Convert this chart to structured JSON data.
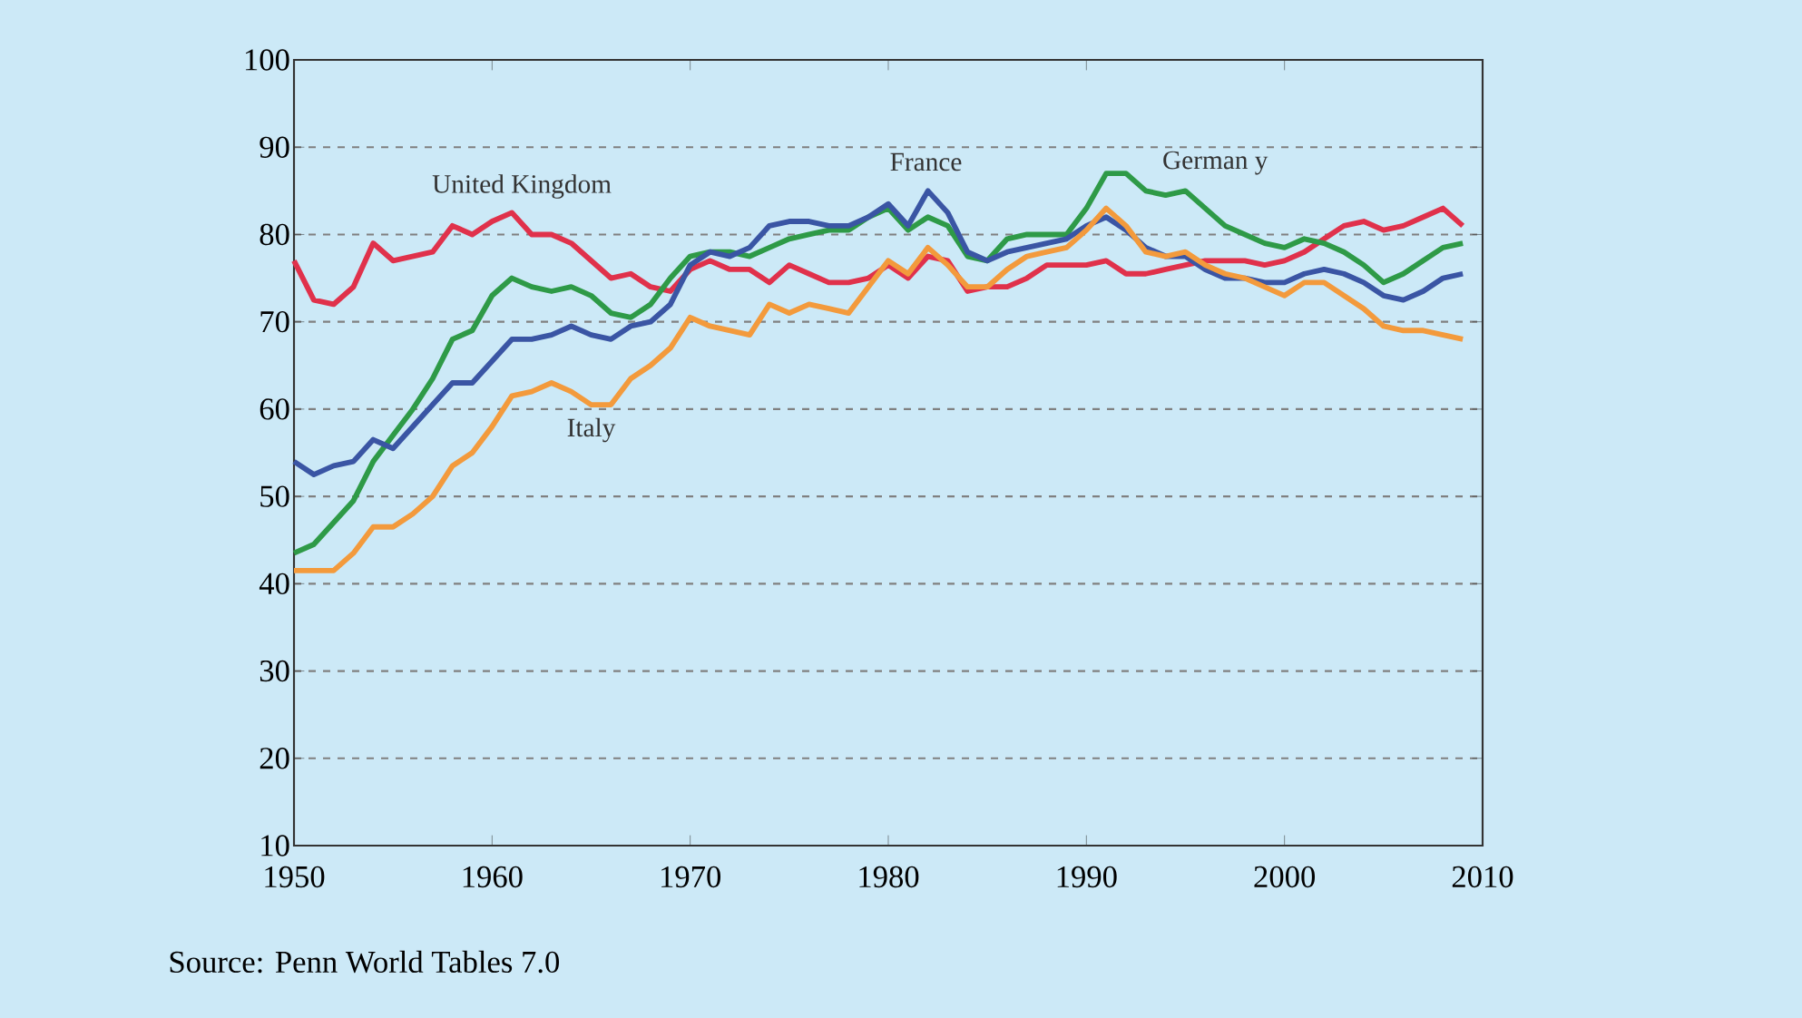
{
  "chart_data": {
    "type": "line",
    "x": [
      1950,
      1951,
      1952,
      1953,
      1954,
      1955,
      1956,
      1957,
      1958,
      1959,
      1960,
      1961,
      1962,
      1963,
      1964,
      1965,
      1966,
      1967,
      1968,
      1969,
      1970,
      1971,
      1972,
      1973,
      1974,
      1975,
      1976,
      1977,
      1978,
      1979,
      1980,
      1981,
      1982,
      1983,
      1984,
      1985,
      1986,
      1987,
      1988,
      1989,
      1990,
      1991,
      1992,
      1993,
      1994,
      1995,
      1996,
      1997,
      1998,
      1999,
      2000,
      2001,
      2002,
      2003,
      2004,
      2005,
      2006,
      2007,
      2008,
      2009
    ],
    "series": [
      {
        "name": "United  Kingdom",
        "color": "#e0314b",
        "values": [
          77,
          72.5,
          72,
          74,
          79,
          77,
          77.5,
          78,
          81,
          80,
          81.5,
          82.5,
          80,
          80,
          79,
          77,
          75,
          75.5,
          74,
          73.5,
          76,
          77,
          76,
          76,
          74.5,
          76.5,
          75.5,
          74.5,
          74.5,
          75,
          76.5,
          75,
          77.5,
          77,
          73.5,
          74,
          74,
          75,
          76.5,
          76.5,
          76.5,
          77,
          75.5,
          75.5,
          76,
          76.5,
          77,
          77,
          77,
          76.5,
          77,
          78,
          79.5,
          81,
          81.5,
          80.5,
          81,
          82,
          83,
          81
        ]
      },
      {
        "name": "German y",
        "color": "#2e9a47",
        "values": [
          43.5,
          44.5,
          47,
          49.5,
          54,
          57,
          60,
          63.5,
          68,
          69,
          73,
          75,
          74,
          73.5,
          74,
          73,
          71,
          70.5,
          72,
          75,
          77.5,
          78,
          78,
          77.5,
          78.5,
          79.5,
          80,
          80.5,
          80.5,
          82,
          83,
          80.5,
          82,
          81,
          77.5,
          77,
          79.5,
          80,
          80,
          80,
          83,
          87,
          87,
          85,
          84.5,
          85,
          83,
          81,
          80,
          79,
          78.5,
          79.5,
          79,
          78,
          76.5,
          74.5,
          75.5,
          77,
          78.5,
          79
        ]
      },
      {
        "name": "France",
        "color": "#3a55a4",
        "values": [
          54,
          52.5,
          53.5,
          54,
          56.5,
          55.5,
          58,
          60.5,
          63,
          63,
          65.5,
          68,
          68,
          68.5,
          69.5,
          68.5,
          68,
          69.5,
          70,
          72,
          76.5,
          78,
          77.5,
          78.5,
          81,
          81.5,
          81.5,
          81,
          81,
          82,
          83.5,
          81,
          85,
          82.5,
          78,
          77,
          78,
          78.5,
          79,
          79.5,
          81,
          82,
          80.5,
          78.5,
          77.5,
          77.5,
          76,
          75,
          75,
          74.5,
          74.5,
          75.5,
          76,
          75.5,
          74.5,
          73,
          72.5,
          73.5,
          75,
          75.5
        ]
      },
      {
        "name": "Italy",
        "color": "#f39a3c",
        "values": [
          41.5,
          41.5,
          41.5,
          43.5,
          46.5,
          46.5,
          48,
          50,
          53.5,
          55,
          58,
          61.5,
          62,
          63,
          62,
          60.5,
          60.5,
          63.5,
          65,
          67,
          70.5,
          69.5,
          69,
          68.5,
          72,
          71,
          72,
          71.5,
          71,
          74,
          77,
          75.5,
          78.5,
          76.5,
          74,
          74,
          76,
          77.5,
          78,
          78.5,
          80.5,
          83,
          81,
          78,
          77.5,
          78,
          76.5,
          75.5,
          75,
          74,
          73,
          74.5,
          74.5,
          73,
          71.5,
          69.5,
          69,
          69,
          68.5,
          68
        ]
      }
    ],
    "xlim": [
      1950,
      2010
    ],
    "xticks": [
      1950,
      1960,
      1970,
      1980,
      1990,
      2000,
      2010
    ],
    "ylim": [
      10,
      100
    ],
    "yticks": [
      10,
      20,
      30,
      40,
      50,
      60,
      70,
      80,
      90,
      100
    ],
    "grid": "y",
    "annotations": [
      "Source:  Penn World Tables 7.0"
    ]
  }
}
